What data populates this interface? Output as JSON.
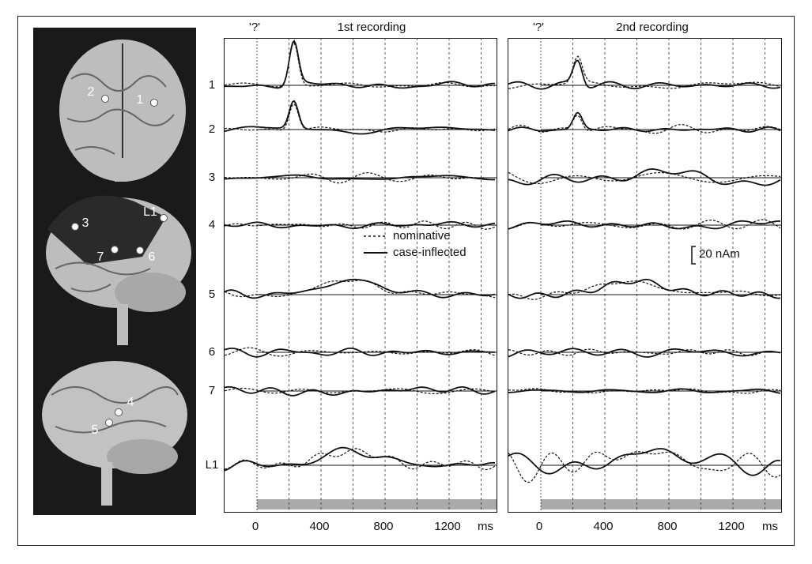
{
  "panels": [
    {
      "marker": "'?'",
      "title": "1st recording",
      "x_labels": [
        "0",
        "400",
        "800",
        "1200"
      ],
      "x_unit": "ms"
    },
    {
      "marker": "'?'",
      "title": "2nd recording",
      "x_labels": [
        "0",
        "400",
        "800",
        "1200"
      ],
      "x_unit": "ms"
    }
  ],
  "row_labels": [
    "1",
    "2",
    "3",
    "4",
    "5",
    "6",
    "7",
    "L1"
  ],
  "legend": [
    "nominative",
    "case-inflected"
  ],
  "scale_bar": "20 nAm",
  "brain_labels": [
    "2",
    "1",
    "3",
    "L1",
    "7",
    "6",
    "4",
    "5"
  ]
}
